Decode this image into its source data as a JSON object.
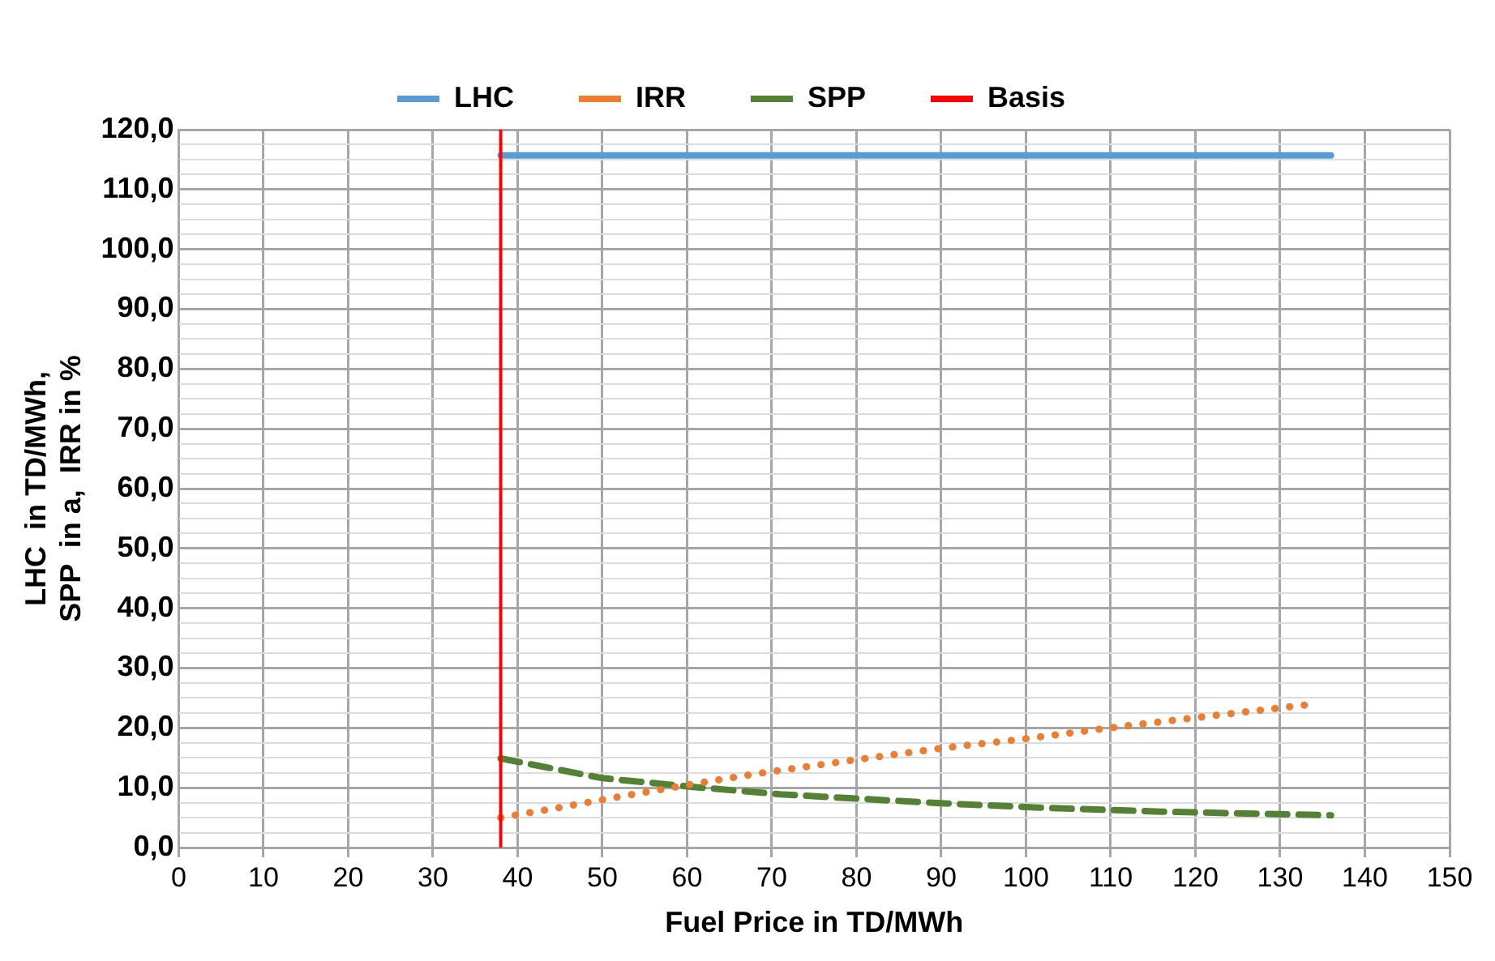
{
  "chart_data": {
    "type": "line",
    "xlabel": "Fuel Price in TD/MWh",
    "ylabel": "LHC  in TD/MWh,\nSPP  in a,  IRR in %",
    "xlim": [
      0,
      150
    ],
    "xticks": [
      0,
      10,
      20,
      30,
      40,
      50,
      60,
      70,
      80,
      90,
      100,
      110,
      120,
      130,
      140,
      150
    ],
    "ylim": [
      0,
      120
    ],
    "yticks": [
      {
        "value": 0,
        "label": "0,0"
      },
      {
        "value": 2.5,
        "label": null
      },
      {
        "value": 5,
        "label": null
      },
      {
        "value": 7.5,
        "label": null
      },
      {
        "value": 10,
        "label": "10,0"
      },
      {
        "value": 12.5,
        "label": null
      },
      {
        "value": 15,
        "label": null
      },
      {
        "value": 17.5,
        "label": null
      },
      {
        "value": 20,
        "label": "20,0"
      },
      {
        "value": 22.5,
        "label": null
      },
      {
        "value": 25,
        "label": null
      },
      {
        "value": 27.5,
        "label": null
      },
      {
        "value": 30,
        "label": "30,0"
      },
      {
        "value": 32.5,
        "label": null
      },
      {
        "value": 35,
        "label": null
      },
      {
        "value": 37.5,
        "label": null
      },
      {
        "value": 40,
        "label": "40,0"
      },
      {
        "value": 42.5,
        "label": null
      },
      {
        "value": 45,
        "label": null
      },
      {
        "value": 47.5,
        "label": null
      },
      {
        "value": 50,
        "label": "50,0"
      },
      {
        "value": 52.5,
        "label": null
      },
      {
        "value": 55,
        "label": null
      },
      {
        "value": 57.5,
        "label": null
      },
      {
        "value": 60,
        "label": "60,0"
      },
      {
        "value": 62.5,
        "label": null
      },
      {
        "value": 65,
        "label": null
      },
      {
        "value": 67.5,
        "label": null
      },
      {
        "value": 70,
        "label": "70,0"
      },
      {
        "value": 72.5,
        "label": null
      },
      {
        "value": 75,
        "label": null
      },
      {
        "value": 77.5,
        "label": null
      },
      {
        "value": 80,
        "label": "80,0"
      },
      {
        "value": 82.5,
        "label": null
      },
      {
        "value": 85,
        "label": null
      },
      {
        "value": 87.5,
        "label": null
      },
      {
        "value": 90,
        "label": "90,0"
      },
      {
        "value": 92.5,
        "label": null
      },
      {
        "value": 95,
        "label": null
      },
      {
        "value": 97.5,
        "label": null
      },
      {
        "value": 100,
        "label": "100,0"
      },
      {
        "value": 102.5,
        "label": null
      },
      {
        "value": 105,
        "label": null
      },
      {
        "value": 107.5,
        "label": null
      },
      {
        "value": 110,
        "label": "110,0"
      },
      {
        "value": 112.5,
        "label": null
      },
      {
        "value": 115,
        "label": null
      },
      {
        "value": 117.5,
        "label": null
      },
      {
        "value": 120,
        "label": "120,0"
      }
    ],
    "grid": true,
    "legend": "top",
    "marker": "none",
    "series": [
      {
        "name": "LHC",
        "color": "#5b9bd5",
        "line_style": "solid",
        "x": [
          38,
          136
        ],
        "values": [
          115.7,
          115.7
        ]
      },
      {
        "name": "IRR",
        "color": "#ed7d31",
        "line_style": "dotted",
        "x": [
          38,
          45,
          52,
          61,
          68,
          79,
          90,
          100,
          111,
          123,
          134
        ],
        "values": [
          5.0,
          6.7,
          8.5,
          10.7,
          12.3,
          14.5,
          16.6,
          18.2,
          20.2,
          22.2,
          24.0
        ]
      },
      {
        "name": "SPP",
        "color": "#548235",
        "line_style": "dashed",
        "x": [
          38,
          50,
          61,
          71,
          81,
          93,
          103,
          116,
          136
        ],
        "values": [
          14.9,
          11.6,
          10.1,
          8.9,
          8.1,
          7.2,
          6.6,
          6.0,
          5.4
        ]
      }
    ],
    "ref_lines": [
      {
        "axis": "x",
        "value": 38,
        "label": "Basis",
        "color": "#ff0000",
        "line_style": "solid"
      }
    ]
  }
}
